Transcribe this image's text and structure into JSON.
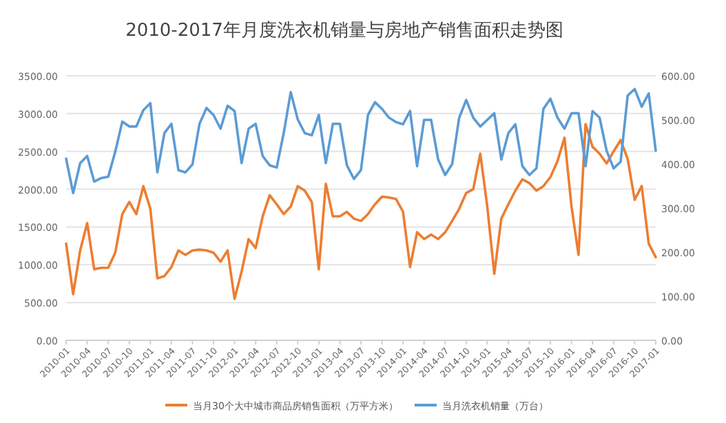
{
  "chart_data": {
    "type": "line",
    "title": "2010-2017年月度洗衣机销量与房地产销售面积走势图",
    "categories": [
      "2010-01",
      null,
      null,
      "2010-04",
      null,
      null,
      "2010-07",
      null,
      null,
      "2010-10",
      null,
      null,
      "2011-01",
      null,
      null,
      "2011-04",
      null,
      null,
      "2011-07",
      null,
      null,
      "2011-10",
      null,
      null,
      "2012-01",
      null,
      null,
      "2012-04",
      null,
      null,
      "2012-07",
      null,
      null,
      "2012-10",
      null,
      null,
      "2013-01",
      null,
      null,
      "2013-04",
      null,
      null,
      "2013-07",
      null,
      null,
      "2013-10",
      null,
      null,
      "2014-01",
      null,
      null,
      "2014-04",
      null,
      null,
      "2014-07",
      null,
      null,
      "2014-10",
      null,
      null,
      "2015-01",
      null,
      null,
      "2015-04",
      null,
      null,
      "2015-07",
      null,
      null,
      "2015-10",
      null,
      null,
      "2016-01",
      null,
      null,
      "2016-04",
      null,
      null,
      "2016-07",
      null,
      null,
      "2016-10",
      null,
      null,
      "2017-01"
    ],
    "series": [
      {
        "name": "当月30个大中城市商品房销售面积（万平方米）",
        "color": "#ed7d31",
        "values": [
          1280,
          610,
          1190,
          1550,
          940,
          960,
          960,
          1160,
          1670,
          1830,
          1670,
          2040,
          1740,
          820,
          850,
          970,
          1190,
          1130,
          1190,
          1200,
          1190,
          1160,
          1040,
          1190,
          550,
          910,
          1340,
          1220,
          1640,
          1920,
          1800,
          1670,
          1770,
          2040,
          1980,
          1830,
          940,
          2070,
          1640,
          1640,
          1700,
          1610,
          1580,
          1670,
          1800,
          1900,
          1890,
          1870,
          1700,
          970,
          1430,
          1340,
          1400,
          1340,
          1430,
          1580,
          1740,
          1950,
          2000,
          2470,
          1770,
          880,
          1610,
          1800,
          1980,
          2130,
          2080,
          1980,
          2040,
          2160,
          2370,
          2680,
          1770,
          1130,
          2860,
          2560,
          2470,
          2340,
          2500,
          2650,
          2400,
          1860,
          2040,
          1280,
          1100
        ]
      },
      {
        "name": "当月洗衣机销量（万台）",
        "color": "#5b9bd5",
        "axis": "y2",
        "values": [
          412,
          334,
          402,
          418,
          360,
          368,
          371,
          428,
          496,
          485,
          485,
          522,
          538,
          381,
          470,
          491,
          386,
          381,
          399,
          491,
          527,
          511,
          480,
          532,
          520,
          402,
          480,
          491,
          418,
          397,
          392,
          470,
          563,
          501,
          470,
          465,
          511,
          402,
          491,
          491,
          397,
          366,
          386,
          511,
          540,
          525,
          505,
          495,
          490,
          520,
          395,
          500,
          500,
          410,
          375,
          400,
          505,
          545,
          505,
          485,
          500,
          515,
          410,
          470,
          490,
          395,
          375,
          390,
          525,
          548,
          505,
          480,
          515,
          515,
          395,
          520,
          505,
          430,
          390,
          405,
          555,
          570,
          530,
          560,
          430
        ]
      }
    ],
    "ylim": [
      0,
      3500
    ],
    "yticks": [
      {
        "value": 0,
        "label": "0.00"
      },
      {
        "value": 500,
        "label": "500.00"
      },
      {
        "value": 1000,
        "label": "1000.00"
      },
      {
        "value": 1500,
        "label": "1500.00"
      },
      {
        "value": 2000,
        "label": "2000.00"
      },
      {
        "value": 2500,
        "label": "2500.00"
      },
      {
        "value": 3000,
        "label": "3000.00"
      },
      {
        "value": 3500,
        "label": "3500.00"
      }
    ],
    "y2lim": [
      0,
      600
    ],
    "y2ticks": [
      {
        "value": 0,
        "label": "0.00"
      },
      {
        "value": 100,
        "label": "100.00"
      },
      {
        "value": 200,
        "label": "200.00"
      },
      {
        "value": 300,
        "label": "300.00"
      },
      {
        "value": 400,
        "label": "400.00"
      },
      {
        "value": 500,
        "label": "500.00"
      },
      {
        "value": 600,
        "label": "600.00"
      }
    ],
    "grid": "y",
    "legend": "bottom",
    "marker": "none",
    "line_style": "solid"
  }
}
